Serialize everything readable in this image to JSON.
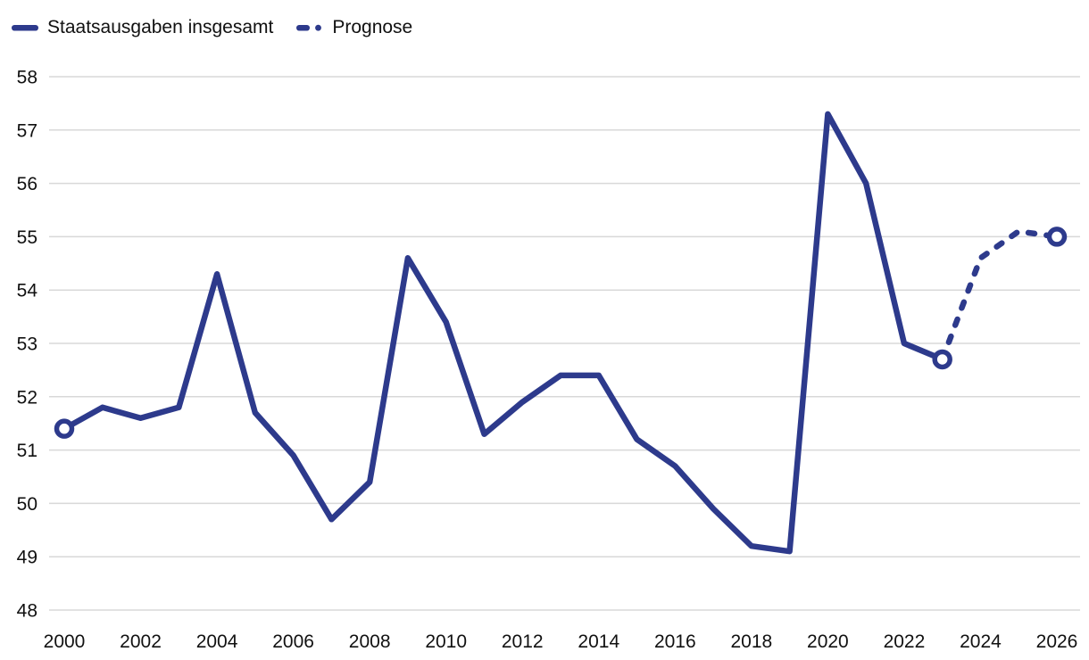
{
  "legend": {
    "items": [
      {
        "label": "Staatsausgaben insgesamt",
        "style": "solid"
      },
      {
        "label": "Prognose",
        "style": "dashed"
      }
    ]
  },
  "chart_data": {
    "type": "line",
    "title": "",
    "xlabel": "",
    "ylabel": "",
    "ylim": [
      48,
      58
    ],
    "ytick_step": 1,
    "yticks": [
      48,
      49,
      50,
      51,
      52,
      53,
      54,
      55,
      56,
      57,
      58
    ],
    "xticks": [
      2000,
      2002,
      2004,
      2006,
      2008,
      2010,
      2012,
      2014,
      2016,
      2018,
      2020,
      2022,
      2024,
      2026
    ],
    "grid": "horizontal",
    "legend_position": "top-left",
    "line_color": "#2d3a8c",
    "grid_color": "#d8d8d8",
    "text_color": "#111111",
    "marker_fill": "#ffffff",
    "series": [
      {
        "name": "Staatsausgaben insgesamt",
        "dash": "solid",
        "x": [
          2000,
          2001,
          2002,
          2003,
          2004,
          2005,
          2006,
          2007,
          2008,
          2009,
          2010,
          2011,
          2012,
          2013,
          2014,
          2015,
          2016,
          2017,
          2018,
          2019,
          2020,
          2021,
          2022,
          2023
        ],
        "y": [
          51.4,
          51.8,
          51.6,
          51.8,
          54.3,
          51.7,
          50.9,
          49.7,
          50.4,
          54.6,
          53.4,
          51.3,
          51.9,
          52.4,
          52.4,
          51.2,
          50.7,
          49.9,
          49.2,
          49.1,
          57.3,
          56.0,
          53.0,
          52.7
        ]
      },
      {
        "name": "Prognose",
        "dash": "dashed",
        "x": [
          2023,
          2024,
          2025,
          2026
        ],
        "y": [
          52.7,
          54.6,
          55.1,
          55.0
        ]
      }
    ],
    "markers": [
      {
        "x": 2000,
        "y": 51.4
      },
      {
        "x": 2023,
        "y": 52.7
      },
      {
        "x": 2026,
        "y": 55.0
      }
    ]
  }
}
